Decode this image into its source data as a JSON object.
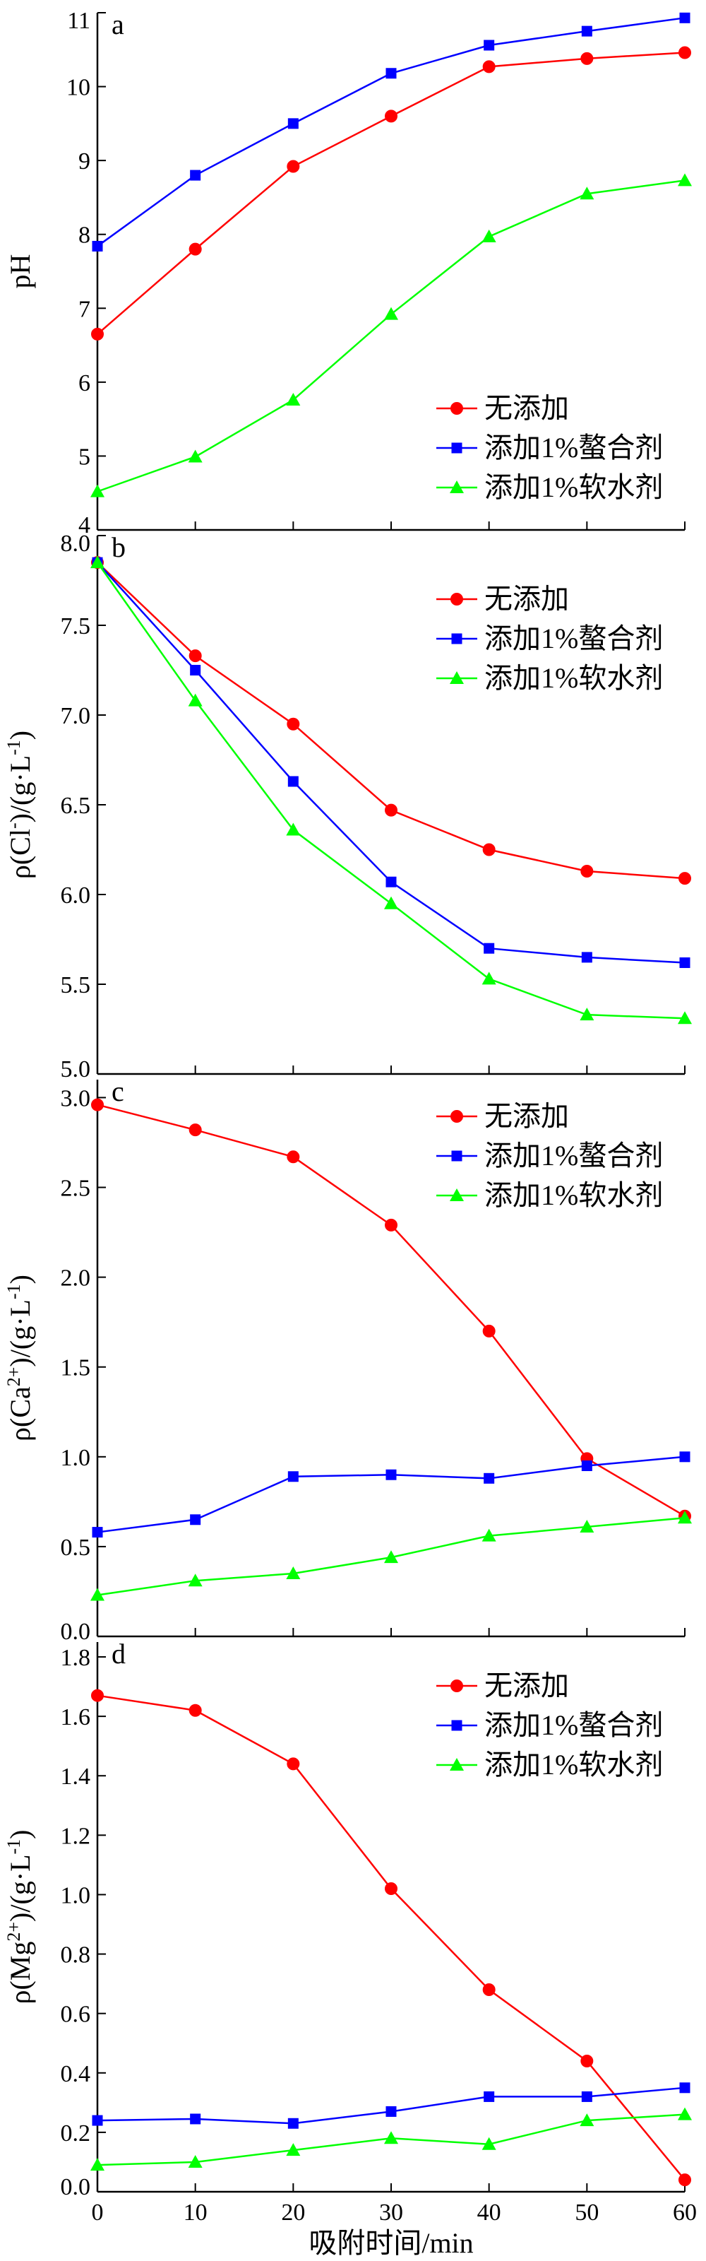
{
  "chart_data": [
    {
      "type": "line",
      "panel_label": "a",
      "ylabel": "pH",
      "ylim": [
        4,
        11
      ],
      "yticks": [
        "4",
        "5",
        "6",
        "7",
        "8",
        "9",
        "10",
        "11"
      ],
      "x": [
        0,
        10,
        20,
        30,
        40,
        50,
        60
      ],
      "series": [
        {
          "name": "无添加",
          "color": "#ff0000",
          "marker": "circle",
          "values": [
            6.65,
            7.8,
            8.92,
            9.6,
            10.27,
            10.38,
            10.46
          ]
        },
        {
          "name": "添加1%螯合剂",
          "color": "#0000ff",
          "marker": "square",
          "values": [
            7.84,
            8.8,
            9.5,
            10.18,
            10.56,
            10.75,
            10.93
          ]
        },
        {
          "name": "添加1%软水剂",
          "color": "#00ff00",
          "marker": "triangle",
          "values": [
            4.52,
            4.99,
            5.76,
            6.92,
            7.97,
            8.55,
            8.73
          ]
        }
      ],
      "legend_position": "bottom-right"
    },
    {
      "type": "line",
      "panel_label": "b",
      "ylabel_main": "ρ(Cl",
      "ylabel_sup": "-",
      "ylabel_tail": ")/(g·L",
      "ylabel_sup2": "-1",
      "ylabel_end": ")",
      "ylim": [
        5.0,
        8.0
      ],
      "yticks": [
        "5.0",
        "5.5",
        "6.0",
        "6.5",
        "7.0",
        "7.5",
        "8.0"
      ],
      "x": [
        0,
        10,
        20,
        30,
        40,
        50,
        60
      ],
      "series": [
        {
          "name": "无添加",
          "color": "#ff0000",
          "marker": "circle",
          "values": [
            7.85,
            7.33,
            6.95,
            6.47,
            6.25,
            6.13,
            6.09
          ]
        },
        {
          "name": "添加1%螯合剂",
          "color": "#0000ff",
          "marker": "square",
          "values": [
            7.85,
            7.25,
            6.63,
            6.07,
            5.7,
            5.65,
            5.62
          ]
        },
        {
          "name": "添加1%软水剂",
          "color": "#00ff00",
          "marker": "triangle",
          "values": [
            7.85,
            7.08,
            6.36,
            5.95,
            5.53,
            5.33,
            5.31
          ]
        }
      ],
      "legend_position": "top-right"
    },
    {
      "type": "line",
      "panel_label": "c",
      "ylabel_main": "ρ(Ca",
      "ylabel_sup": "2+",
      "ylabel_tail": ")/(g·L",
      "ylabel_sup2": "-1",
      "ylabel_end": ")",
      "ylim": [
        0.0,
        3.1
      ],
      "yticks": [
        "0.0",
        "0.5",
        "1.0",
        "1.5",
        "2.0",
        "2.5",
        "3.0"
      ],
      "x": [
        0,
        10,
        20,
        30,
        40,
        50,
        60
      ],
      "series": [
        {
          "name": "无添加",
          "color": "#ff0000",
          "marker": "circle",
          "values": [
            2.96,
            2.82,
            2.67,
            2.29,
            1.7,
            0.99,
            0.67
          ]
        },
        {
          "name": "添加1%螯合剂",
          "color": "#0000ff",
          "marker": "square",
          "values": [
            0.58,
            0.65,
            0.89,
            0.9,
            0.88,
            0.95,
            1.0
          ]
        },
        {
          "name": "添加1%软水剂",
          "color": "#00ff00",
          "marker": "triangle",
          "values": [
            0.23,
            0.31,
            0.35,
            0.44,
            0.56,
            0.61,
            0.66
          ]
        }
      ],
      "legend_position": "top-right"
    },
    {
      "type": "line",
      "panel_label": "d",
      "ylabel_main": "ρ(Mg",
      "ylabel_sup": "2+",
      "ylabel_tail": ")/(g·L",
      "ylabel_sup2": "-1",
      "ylabel_end": ")",
      "ylim": [
        0.0,
        1.85
      ],
      "yticks": [
        "0.0",
        "0.2",
        "0.4",
        "0.6",
        "0.8",
        "1.0",
        "1.2",
        "1.4",
        "1.6",
        "1.8"
      ],
      "x": [
        0,
        10,
        20,
        30,
        40,
        50,
        60
      ],
      "xticks": [
        "0",
        "10",
        "20",
        "30",
        "40",
        "50",
        "60"
      ],
      "xlabel": "吸附时间/min",
      "series": [
        {
          "name": "无添加",
          "color": "#ff0000",
          "marker": "circle",
          "values": [
            1.67,
            1.62,
            1.44,
            1.02,
            0.68,
            0.44,
            0.04
          ]
        },
        {
          "name": "添加1%螯合剂",
          "color": "#0000ff",
          "marker": "square",
          "values": [
            0.24,
            0.245,
            0.23,
            0.27,
            0.32,
            0.32,
            0.35
          ]
        },
        {
          "name": "添加1%软水剂",
          "color": "#00ff00",
          "marker": "triangle",
          "values": [
            0.09,
            0.1,
            0.14,
            0.18,
            0.16,
            0.24,
            0.26
          ]
        }
      ],
      "legend_position": "top-right"
    }
  ]
}
